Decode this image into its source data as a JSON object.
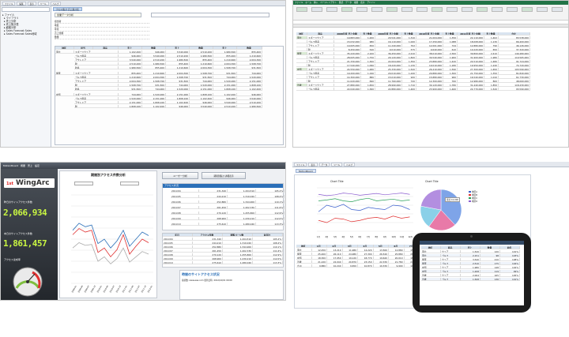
{
  "q1": {
    "toolbar": [
      "ファイル",
      "編集",
      "表示",
      "ツール",
      "ヘルプ"
    ],
    "tree": [
      "ファイル",
      "ライブラリ",
      "売上分析",
      "売上集計表",
      "顧客分析",
      "Sales Forecast Sales",
      "Sales Forecast Sales地域"
    ],
    "tab": "クロス集計 売上集計表",
    "title_box": "営業データ分析",
    "rows": [
      "担当者",
      "地区",
      "年月",
      "売上金額",
      "数量"
    ],
    "headers": [
      "地区",
      "担当",
      "商品",
      "売上",
      "数量",
      "売上",
      "数量",
      "売上",
      "数量"
    ],
    "groups": [
      {
        "name": "東北",
        "items": [
          "スポーツウェア",
          "ゴルフ用品",
          "アウトドア",
          "靴",
          "釣具"
        ]
      },
      {
        "name": "関東",
        "items": [
          "スポーツウェア",
          "ゴルフ用品",
          "アウトドア",
          "靴",
          "釣具"
        ]
      },
      {
        "name": "中部",
        "items": [
          "スポーツウェア",
          "ゴルフ用品",
          "アウトドア",
          "靴"
        ]
      }
    ],
    "values": [
      "1,520,000",
      "2,151,000",
      "1,808,100",
      "1,102,400",
      "946,000",
      "3,540,000",
      "2,510,200",
      "1,980,500",
      "855,400",
      "1,210,600",
      "2,004,300",
      "1,508,700",
      "931,500",
      "744,000"
    ]
  },
  "q2": {
    "ribbon": [
      "ファイル",
      "ホーム",
      "挿入",
      "ページレイアウト",
      "数式",
      "データ",
      "校閲",
      "表示",
      "アドイン"
    ],
    "headers": [
      "地区",
      "商品",
      "2008年度 売上金額",
      "売上数量",
      "2009年度 売上金額",
      "売上数量",
      "2010年度 売上金額",
      "売上数量",
      "2011年度 売上金額",
      "売上数量",
      "合計"
    ],
    "sheet_rows": [
      [
        "東北",
        "スポーツウェア",
        "19,883,000",
        "1,200",
        "20,541,000",
        "1,310",
        "21,004,000",
        "1,350",
        "22,110,000",
        "1,402",
        "83,538,000"
      ],
      [
        "",
        "ゴルフ用品",
        "15,032,000",
        "980",
        "16,110,000",
        "1,020",
        "17,250,000",
        "1,088",
        "18,008,000",
        "1,130",
        "66,400,000"
      ],
      [
        "",
        "アウトドア",
        "10,005,000",
        "650",
        "11,240,000",
        "702",
        "12,001,000",
        "744",
        "12,880,000",
        "790",
        "46,126,000"
      ],
      [
        "",
        "靴",
        "8,450,000",
        "540",
        "9,010,000",
        "575",
        "9,640,000",
        "610",
        "10,220,000",
        "650",
        "37,320,000"
      ],
      [
        "関東",
        "スポーツウェア",
        "35,220,000",
        "2,100",
        "36,450,000",
        "2,210",
        "38,010,000",
        "2,300",
        "39,800,000",
        "2,410",
        "149,480,000"
      ],
      [
        "",
        "ゴルフ用品",
        "28,005,000",
        "1,750",
        "29,120,000",
        "1,820",
        "30,540,000",
        "1,900",
        "31,900,000",
        "1,980",
        "119,565,000"
      ],
      [
        "",
        "アウトドア",
        "21,330,000",
        "1,300",
        "22,004,000",
        "1,350",
        "23,880,000",
        "1,420",
        "24,510,000",
        "1,480",
        "91,724,000"
      ],
      [
        "",
        "靴",
        "17,540,000",
        "1,090",
        "18,220,000",
        "1,130",
        "19,010,000",
        "1,180",
        "19,950,000",
        "1,240",
        "74,720,000"
      ],
      [
        "中部",
        "スポーツウェア",
        "24,550,000",
        "1,480",
        "25,330,000",
        "1,520",
        "26,410,000",
        "1,590",
        "27,300,000",
        "1,650",
        "103,590,000"
      ],
      [
        "",
        "ゴルフ用品",
        "19,200,000",
        "1,190",
        "20,010,000",
        "1,240",
        "20,880,000",
        "1,300",
        "21,750,000",
        "1,350",
        "81,840,000"
      ],
      [
        "",
        "アウトドア",
        "14,300,000",
        "880",
        "15,010,000",
        "920",
        "15,880,000",
        "960",
        "16,540,000",
        "1,010",
        "61,730,000"
      ],
      [
        "",
        "靴",
        "11,020,000",
        "690",
        "11,760,000",
        "720",
        "12,300,000",
        "760",
        "12,980,000",
        "800",
        "48,060,000"
      ],
      [
        "近畿",
        "スポーツウェア",
        "27,880,000",
        "1,650",
        "28,990,000",
        "1,710",
        "30,120,000",
        "1,780",
        "31,440,000",
        "1,850",
        "118,430,000"
      ],
      [
        "",
        "ゴルフ用品",
        "22,040,000",
        "1,360",
        "22,880,000",
        "1,400",
        "23,900,000",
        "1,460",
        "24,770,000",
        "1,520",
        "93,590,000"
      ]
    ]
  },
  "q3": {
    "tabs": [
      "MotionBoard",
      "概要",
      "売上",
      "設定"
    ],
    "title": "期間別アクセス件数分析",
    "logo": "WingArc",
    "logo_prefix": "1st",
    "kpi1_label": "昨日のサイトアクセス件数",
    "kpi1_value": "2,066,934",
    "kpi2_label": "本日のサイトアクセス件数",
    "kpi2_value": "1,861,457",
    "gauge_label": "アクセス達成率",
    "x_labels": [
      "2009-01",
      "2009-04",
      "2009-07",
      "2009-10",
      "2010-01",
      "2010-04",
      "2010-07",
      "2010-10",
      "2011-01",
      "2011-04",
      "2011-07",
      "2011-10",
      "2012-01"
    ],
    "grid_title": "アクセス状況",
    "btn1": "ユーザー分析",
    "btn2": "期間別集計 詳細表示",
    "table_headers": [
      "年月",
      "アクセス件数",
      "閲覧ページ数",
      "前年比"
    ],
    "table_rows": [
      [
        "2011/04",
        "231,340",
        "1,204,510",
        "105.2%"
      ],
      [
        "2011/05",
        "244,210",
        "1,310,020",
        "108.4%"
      ],
      [
        "2011/06",
        "252,880",
        "1,344,900",
        "110.1%"
      ],
      [
        "2011/07",
        "261,450",
        "1,402,330",
        "111.6%"
      ],
      [
        "2011/08",
        "270,120",
        "1,455,800",
        "112.9%"
      ],
      [
        "2011/09",
        "268,900",
        "1,430,210",
        "112.0%"
      ],
      [
        "2011/10",
        "275,610",
        "1,480,040",
        "113.3%"
      ]
    ],
    "bottom_title": "時間のサイトアクセス状況",
    "bottom_sub": "接続数: www.aaa.com 更新日時: 2012/10/01 00:00"
  },
  "q4": {
    "toolbar": [
      "ファイル",
      "表示",
      "データ",
      "ツール",
      "ヘルプ"
    ],
    "tab": "MotionBoard",
    "line_title": "Chart Title",
    "pie_title": "Chart Title",
    "legend": [
      "地区A",
      "地区B",
      "地区C",
      "地区D"
    ],
    "pie_label": "東北 10,000",
    "x_labels": [
      "1月",
      "2月",
      "3月",
      "4月",
      "5月",
      "6月",
      "7月",
      "8月",
      "9月",
      "10月",
      "11月",
      "12月"
    ],
    "table_headers": [
      "地区",
      "1月",
      "2月",
      "3月",
      "4月",
      "5月",
      "6月",
      "7月",
      "8月",
      "9月"
    ],
    "table_rows": [
      [
        "東北",
        "12,450",
        "13,210",
        "11,980",
        "14,220",
        "13,560",
        "12,880",
        "15,010",
        "14,330",
        "13,770"
      ],
      [
        "関東",
        "25,400",
        "26,110",
        "24,980",
        "27,300",
        "26,540",
        "25,880",
        "28,210",
        "27,650",
        "26,990"
      ],
      [
        "中部",
        "18,300",
        "17,950",
        "19,120",
        "18,770",
        "19,640",
        "20,010",
        "18,880",
        "19,450",
        "20,220"
      ],
      [
        "近畿",
        "21,220",
        "22,040",
        "20,870",
        "23,150",
        "22,330",
        "21,780",
        "24,010",
        "23,420",
        "22,890"
      ],
      [
        "九州",
        "9,880",
        "10,240",
        "9,650",
        "10,870",
        "10,330",
        "9,990",
        "11,250",
        "10,760",
        "10,410"
      ]
    ],
    "tablet_headers": [
      "地区",
      "商品",
      "売上",
      "数量",
      "前年"
    ],
    "tablet_rows": [
      [
        "東北",
        "ウェア",
        "1,520",
        "120",
        "101%"
      ],
      [
        "東北",
        "ゴルフ",
        "2,151",
        "98",
        "103%"
      ],
      [
        "関東",
        "ウェア",
        "3,540",
        "210",
        "108%"
      ],
      [
        "関東",
        "ゴルフ",
        "2,510",
        "175",
        "104%"
      ],
      [
        "中部",
        "ウェア",
        "1,980",
        "148",
        "102%"
      ],
      [
        "中部",
        "ゴルフ",
        "1,208",
        "119",
        "99%"
      ],
      [
        "近畿",
        "ウェア",
        "2,004",
        "165",
        "105%"
      ],
      [
        "近畿",
        "ゴルフ",
        "1,508",
        "136",
        "101%"
      ]
    ]
  },
  "colors": {
    "green": "#217346",
    "blue": "#2a6fb8",
    "red": "#e03030",
    "pink": "#ff7aa8",
    "lime": "#c8f542"
  }
}
